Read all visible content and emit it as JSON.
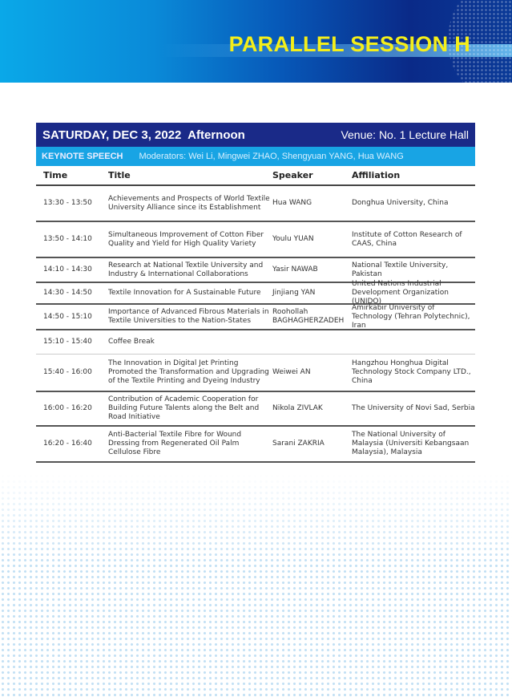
{
  "banner": {
    "title": "PARALLEL SESSION H"
  },
  "session": {
    "date": "SATURDAY, DEC 3, 2022  Afternoon",
    "venue": "Venue: No. 1 Lecture Hall",
    "type": "KEYNOTE SPEECH",
    "moderators": "Moderators: Wei Li, Mingwei ZHAO, Shengyuan YANG, Hua WANG"
  },
  "columns": [
    "Time",
    "Title",
    "Speaker",
    "Affiliation"
  ],
  "rows": [
    {
      "time": "13:30 - 13:50",
      "title": "Achievements and Prospects of World Textile University Alliance since its Establishment",
      "speaker": "Hua WANG",
      "affiliation": "Donghua University, China"
    },
    {
      "time": "13:50 - 14:10",
      "title": "Simultaneous Improvement of Cotton Fiber Quality and Yield for High Quality Variety",
      "speaker": "Youlu YUAN",
      "affiliation": "Institute of Cotton Research of CAAS, China"
    },
    {
      "time": "14:10 - 14:30",
      "title": "Research at National Textile University and Industry & International Collaborations",
      "speaker": "Yasir NAWAB",
      "affiliation": "National Textile University, Pakistan"
    },
    {
      "time": "14:30 - 14:50",
      "title": "Textile Innovation for A Sustainable Future",
      "speaker": "Jinjiang YAN",
      "affiliation": "United Nations Industrial Development Organization (UNIDO)"
    },
    {
      "time": "14:50 - 15:10",
      "title": "Importance of Advanced Fibrous Materials in Textile Universities to the Nation-States",
      "speaker": "Roohollah BAGHAGHERZADEH",
      "affiliation": "Amirkabir University of Technology (Tehran Polytechnic), Iran"
    },
    {
      "time": "15:10 - 15:40",
      "title": "Coffee Break",
      "speaker": "",
      "affiliation": ""
    },
    {
      "time": "15:40 - 16:00",
      "title": "The Innovation in Digital Jet Printing Promoted the Transformation and Upgrading of the Textile Printing and Dyeing Industry",
      "speaker": "Weiwei AN",
      "affiliation": "Hangzhou Honghua Digital Technology Stock Company LTD., China"
    },
    {
      "time": "16:00 - 16:20",
      "title": "Contribution of Academic Cooperation for Building Future Talents along the Belt and Road Initiative",
      "speaker": "Nikola ZIVLAK",
      "affiliation": "The University of Novi Sad, Serbia"
    },
    {
      "time": "16:20 - 16:40",
      "title": "Anti-Bacterial Textile Fibre for Wound Dressing from Regenerated Oil Palm Cellulose Fibre",
      "speaker": "Sarani ZAKRIA",
      "affiliation": "The National University of Malaysia (Universiti Kebangsaan Malaysia), Malaysia"
    }
  ]
}
